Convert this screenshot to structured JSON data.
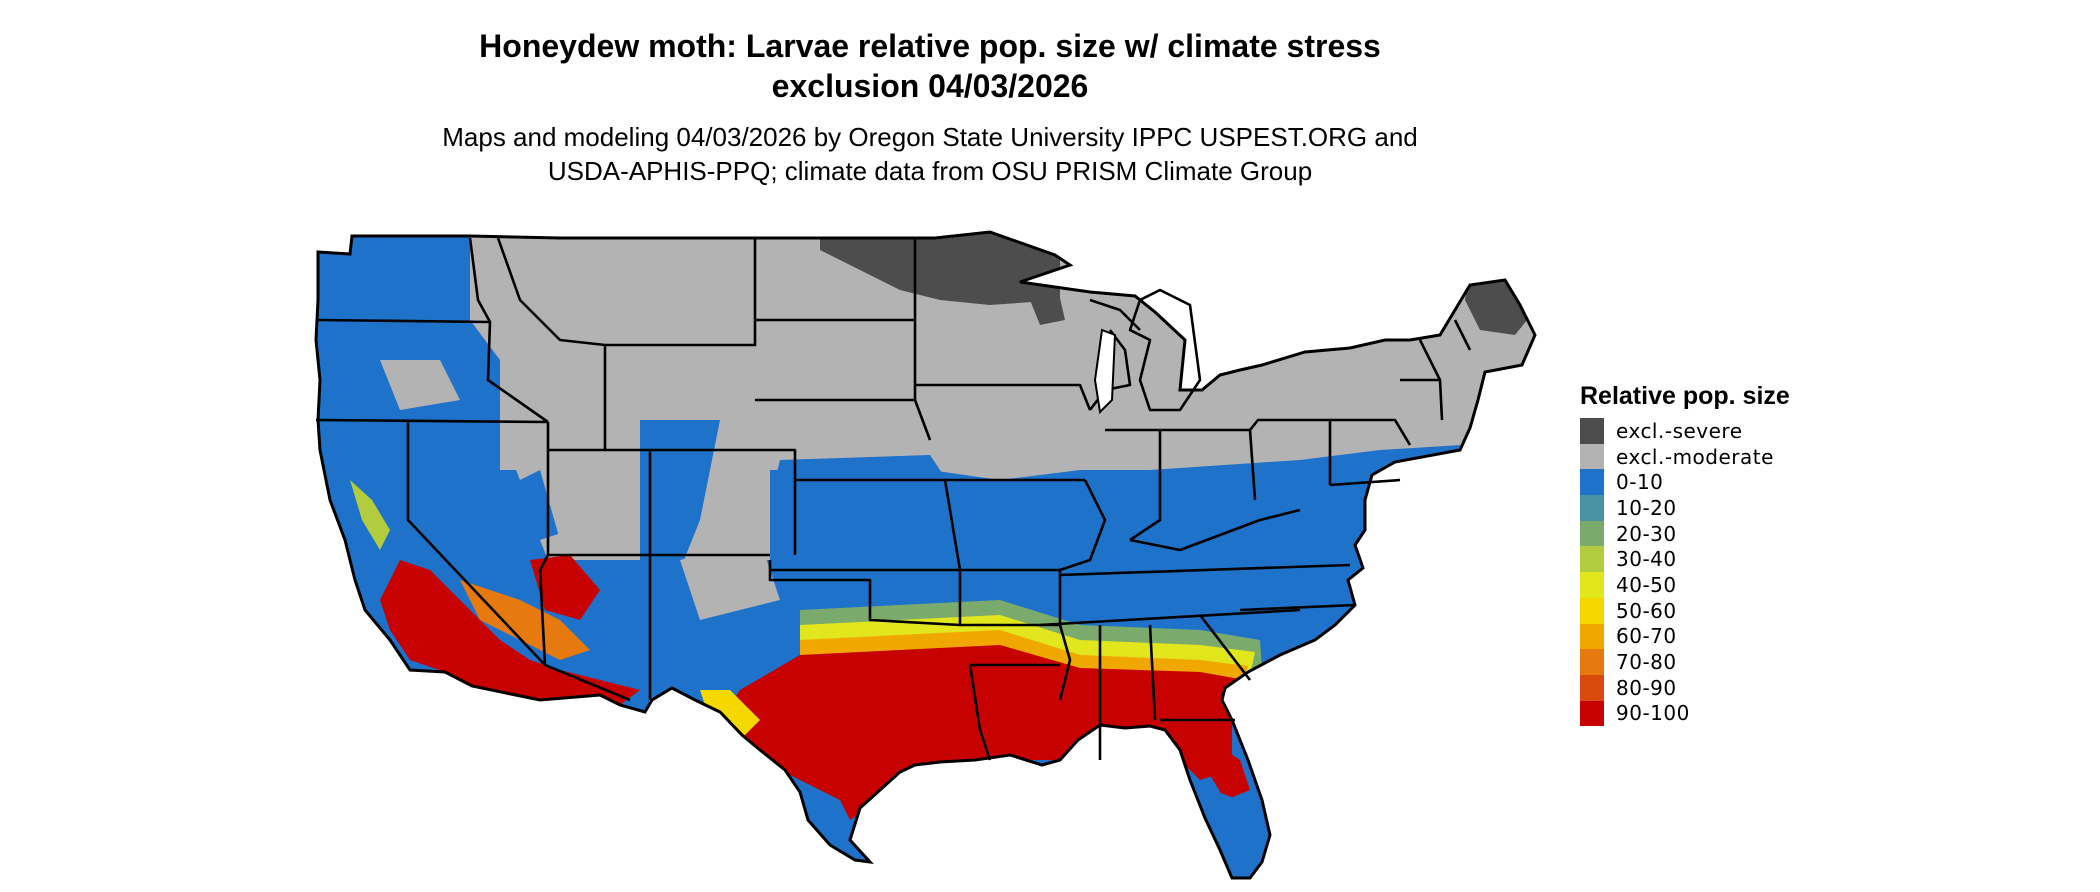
{
  "map": {
    "title": "Honeydew moth: Larvae relative pop. size w/ climate stress\nexclusion 04/03/2026",
    "subtitle": "Maps and modeling 04/03/2026 by Oregon State University IPPC USPEST.ORG and\nUSDA-APHIS-PPQ; climate data from OSU PRISM Climate Group",
    "region": "contiguous-united-states",
    "state_borders": true
  },
  "legend": {
    "title": "Relative pop. size",
    "items": [
      {
        "label": "excl.-severe",
        "color": "#4d4d4d"
      },
      {
        "label": "excl.-moderate",
        "color": "#b3b3b3"
      },
      {
        "label": "0-10",
        "color": "#1e72c9"
      },
      {
        "label": "10-20",
        "color": "#4a93a4"
      },
      {
        "label": "20-30",
        "color": "#7aab6c"
      },
      {
        "label": "30-40",
        "color": "#b2cc3e"
      },
      {
        "label": "40-50",
        "color": "#e2e61c"
      },
      {
        "label": "50-60",
        "color": "#f5d800"
      },
      {
        "label": "60-70",
        "color": "#f0a800"
      },
      {
        "label": "70-80",
        "color": "#e77a0e"
      },
      {
        "label": "80-90",
        "color": "#d94a0c"
      },
      {
        "label": "90-100",
        "color": "#c70000"
      }
    ]
  }
}
